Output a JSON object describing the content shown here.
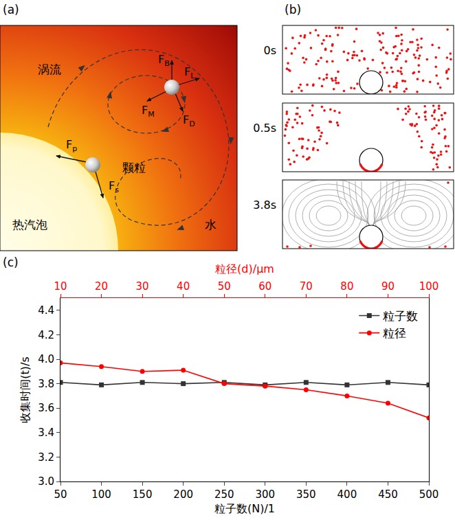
{
  "panels": {
    "a": {
      "letter": "(a)",
      "labels": {
        "vortex": "涡流",
        "particle": "颗粒",
        "bubble": "热汽泡",
        "water": "水"
      },
      "forces": [
        {
          "main": "F",
          "sub": "B"
        },
        {
          "main": "F",
          "sub": "L"
        },
        {
          "main": "F",
          "sub": "M"
        },
        {
          "main": "F",
          "sub": "D"
        },
        {
          "main": "F",
          "sub": "p"
        },
        {
          "main": "F",
          "sub": "s"
        }
      ]
    },
    "b": {
      "letter": "(b)",
      "times": [
        "0s",
        "0.5s",
        "3.8s"
      ]
    },
    "c": {
      "letter": "(c)"
    }
  },
  "chart_data": {
    "type": "line",
    "xlabel": "粒子数(N)/1",
    "xlim": [
      50,
      500
    ],
    "xticks": [
      50,
      100,
      150,
      200,
      250,
      300,
      350,
      400,
      450,
      500
    ],
    "x2label": "粒径(d)/μm",
    "x2lim": [
      10,
      100
    ],
    "x2ticks": [
      10,
      20,
      30,
      40,
      50,
      60,
      70,
      80,
      90,
      100
    ],
    "ylabel": "收集时间(t)/s",
    "ylim": [
      3.0,
      4.5
    ],
    "yticks": [
      {
        "value": 3,
        "label": "3.0"
      },
      3.2,
      3.4,
      3.6,
      3.8,
      {
        "value": 4,
        "label": "4.0"
      },
      4.2,
      4.4
    ],
    "grid": false,
    "legend": "top right",
    "series": [
      {
        "name": "粒子数",
        "color": "#333333",
        "marker": "square",
        "line_style": "solid",
        "x": [
          50,
          100,
          150,
          200,
          250,
          300,
          350,
          400,
          450,
          500
        ],
        "values": [
          3.81,
          3.79,
          3.81,
          3.8,
          3.81,
          3.79,
          3.81,
          3.79,
          3.81,
          3.79
        ]
      },
      {
        "name": "粒径",
        "color": "#ff0000",
        "marker": "circle",
        "line_style": "solid",
        "axis": "x2",
        "x": [
          10,
          20,
          30,
          40,
          50,
          60,
          70,
          80,
          90,
          100
        ],
        "values": [
          3.97,
          3.94,
          3.9,
          3.91,
          3.8,
          3.78,
          3.75,
          3.7,
          3.64,
          3.52
        ]
      }
    ]
  }
}
